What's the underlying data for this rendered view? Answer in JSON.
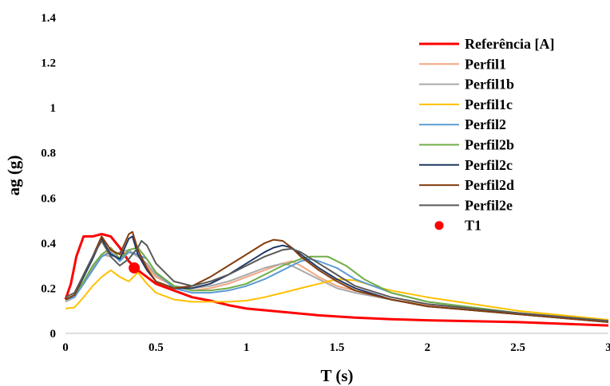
{
  "chart_data": {
    "type": "line",
    "title": "",
    "xlabel": "T (s)",
    "ylabel": "ag (g)",
    "xlim": [
      0,
      3
    ],
    "ylim": [
      0,
      1.4
    ],
    "xticks": [
      "0",
      "0.5",
      "1",
      "1.5",
      "2",
      "2.5",
      "3"
    ],
    "yticks": [
      "0",
      "0.2",
      "0.4",
      "0.6",
      "0.8",
      "1",
      "1.2",
      "1.4"
    ],
    "grid": false,
    "legend_position": "top-right",
    "series": [
      {
        "name": "Referência [A]",
        "color": "#ff0000",
        "width": 3,
        "points": [
          [
            0,
            0.15
          ],
          [
            0.03,
            0.22
          ],
          [
            0.06,
            0.34
          ],
          [
            0.1,
            0.43
          ],
          [
            0.15,
            0.43
          ],
          [
            0.2,
            0.44
          ],
          [
            0.25,
            0.43
          ],
          [
            0.3,
            0.38
          ],
          [
            0.35,
            0.32
          ],
          [
            0.4,
            0.28
          ],
          [
            0.5,
            0.22
          ],
          [
            0.6,
            0.19
          ],
          [
            0.7,
            0.16
          ],
          [
            0.8,
            0.145
          ],
          [
            0.9,
            0.125
          ],
          [
            1.0,
            0.11
          ],
          [
            1.2,
            0.095
          ],
          [
            1.4,
            0.08
          ],
          [
            1.6,
            0.07
          ],
          [
            1.8,
            0.063
          ],
          [
            2.0,
            0.058
          ],
          [
            2.5,
            0.05
          ],
          [
            3.0,
            0.035
          ]
        ]
      },
      {
        "name": "Perfil1",
        "color": "#f4a582",
        "width": 2,
        "points": [
          [
            0,
            0.14
          ],
          [
            0.05,
            0.16
          ],
          [
            0.1,
            0.22
          ],
          [
            0.15,
            0.28
          ],
          [
            0.2,
            0.34
          ],
          [
            0.25,
            0.37
          ],
          [
            0.3,
            0.33
          ],
          [
            0.35,
            0.36
          ],
          [
            0.38,
            0.35
          ],
          [
            0.42,
            0.33
          ],
          [
            0.5,
            0.25
          ],
          [
            0.6,
            0.21
          ],
          [
            0.7,
            0.19
          ],
          [
            0.8,
            0.2
          ],
          [
            0.9,
            0.22
          ],
          [
            1.0,
            0.25
          ],
          [
            1.1,
            0.28
          ],
          [
            1.2,
            0.31
          ],
          [
            1.25,
            0.32
          ],
          [
            1.3,
            0.3
          ],
          [
            1.4,
            0.25
          ],
          [
            1.5,
            0.21
          ],
          [
            1.6,
            0.19
          ],
          [
            1.8,
            0.15
          ],
          [
            2.0,
            0.125
          ],
          [
            2.5,
            0.09
          ],
          [
            3.0,
            0.06
          ]
        ]
      },
      {
        "name": "Perfil1b",
        "color": "#a9a9a9",
        "width": 2,
        "points": [
          [
            0,
            0.14
          ],
          [
            0.05,
            0.16
          ],
          [
            0.1,
            0.22
          ],
          [
            0.15,
            0.29
          ],
          [
            0.2,
            0.35
          ],
          [
            0.25,
            0.34
          ],
          [
            0.3,
            0.36
          ],
          [
            0.35,
            0.37
          ],
          [
            0.4,
            0.34
          ],
          [
            0.45,
            0.31
          ],
          [
            0.5,
            0.26
          ],
          [
            0.6,
            0.21
          ],
          [
            0.7,
            0.2
          ],
          [
            0.8,
            0.21
          ],
          [
            0.9,
            0.23
          ],
          [
            1.0,
            0.26
          ],
          [
            1.1,
            0.29
          ],
          [
            1.2,
            0.31
          ],
          [
            1.25,
            0.3
          ],
          [
            1.3,
            0.28
          ],
          [
            1.4,
            0.24
          ],
          [
            1.5,
            0.2
          ],
          [
            1.6,
            0.18
          ],
          [
            1.8,
            0.15
          ],
          [
            2.0,
            0.12
          ],
          [
            2.5,
            0.09
          ],
          [
            3.0,
            0.055
          ]
        ]
      },
      {
        "name": "Perfil1c",
        "color": "#ffc000",
        "width": 2,
        "points": [
          [
            0,
            0.11
          ],
          [
            0.05,
            0.115
          ],
          [
            0.1,
            0.16
          ],
          [
            0.15,
            0.21
          ],
          [
            0.2,
            0.25
          ],
          [
            0.25,
            0.28
          ],
          [
            0.3,
            0.25
          ],
          [
            0.35,
            0.23
          ],
          [
            0.4,
            0.27
          ],
          [
            0.45,
            0.22
          ],
          [
            0.5,
            0.18
          ],
          [
            0.6,
            0.15
          ],
          [
            0.7,
            0.14
          ],
          [
            0.8,
            0.14
          ],
          [
            0.9,
            0.14
          ],
          [
            1.0,
            0.145
          ],
          [
            1.1,
            0.16
          ],
          [
            1.2,
            0.18
          ],
          [
            1.3,
            0.2
          ],
          [
            1.4,
            0.22
          ],
          [
            1.5,
            0.24
          ],
          [
            1.6,
            0.235
          ],
          [
            1.7,
            0.21
          ],
          [
            1.8,
            0.19
          ],
          [
            2.0,
            0.16
          ],
          [
            2.5,
            0.1
          ],
          [
            3.0,
            0.06
          ]
        ]
      },
      {
        "name": "Perfil2",
        "color": "#5b9bd5",
        "width": 2,
        "points": [
          [
            0,
            0.15
          ],
          [
            0.05,
            0.16
          ],
          [
            0.1,
            0.22
          ],
          [
            0.15,
            0.28
          ],
          [
            0.2,
            0.34
          ],
          [
            0.25,
            0.36
          ],
          [
            0.3,
            0.32
          ],
          [
            0.35,
            0.36
          ],
          [
            0.4,
            0.35
          ],
          [
            0.45,
            0.33
          ],
          [
            0.5,
            0.27
          ],
          [
            0.6,
            0.2
          ],
          [
            0.7,
            0.18
          ],
          [
            0.8,
            0.18
          ],
          [
            0.9,
            0.19
          ],
          [
            1.0,
            0.21
          ],
          [
            1.1,
            0.24
          ],
          [
            1.2,
            0.28
          ],
          [
            1.3,
            0.32
          ],
          [
            1.35,
            0.33
          ],
          [
            1.4,
            0.32
          ],
          [
            1.5,
            0.29
          ],
          [
            1.6,
            0.24
          ],
          [
            1.8,
            0.18
          ],
          [
            2.0,
            0.14
          ],
          [
            2.5,
            0.09
          ],
          [
            3.0,
            0.055
          ]
        ]
      },
      {
        "name": "Perfil2b",
        "color": "#70ad47",
        "width": 2,
        "points": [
          [
            0,
            0.15
          ],
          [
            0.05,
            0.17
          ],
          [
            0.1,
            0.23
          ],
          [
            0.15,
            0.3
          ],
          [
            0.2,
            0.35
          ],
          [
            0.25,
            0.38
          ],
          [
            0.3,
            0.33
          ],
          [
            0.35,
            0.37
          ],
          [
            0.4,
            0.38
          ],
          [
            0.45,
            0.33
          ],
          [
            0.5,
            0.27
          ],
          [
            0.6,
            0.21
          ],
          [
            0.7,
            0.19
          ],
          [
            0.8,
            0.19
          ],
          [
            0.9,
            0.2
          ],
          [
            1.0,
            0.22
          ],
          [
            1.1,
            0.26
          ],
          [
            1.2,
            0.3
          ],
          [
            1.3,
            0.33
          ],
          [
            1.35,
            0.34
          ],
          [
            1.45,
            0.34
          ],
          [
            1.55,
            0.3
          ],
          [
            1.65,
            0.24
          ],
          [
            1.8,
            0.18
          ],
          [
            2.0,
            0.14
          ],
          [
            2.5,
            0.09
          ],
          [
            3.0,
            0.055
          ]
        ]
      },
      {
        "name": "Perfil2c",
        "color": "#203864",
        "width": 2,
        "points": [
          [
            0,
            0.15
          ],
          [
            0.05,
            0.17
          ],
          [
            0.1,
            0.25
          ],
          [
            0.15,
            0.33
          ],
          [
            0.2,
            0.42
          ],
          [
            0.25,
            0.35
          ],
          [
            0.3,
            0.33
          ],
          [
            0.35,
            0.42
          ],
          [
            0.37,
            0.43
          ],
          [
            0.4,
            0.35
          ],
          [
            0.45,
            0.28
          ],
          [
            0.5,
            0.23
          ],
          [
            0.6,
            0.2
          ],
          [
            0.7,
            0.2
          ],
          [
            0.8,
            0.22
          ],
          [
            0.9,
            0.26
          ],
          [
            1.0,
            0.31
          ],
          [
            1.1,
            0.36
          ],
          [
            1.15,
            0.38
          ],
          [
            1.2,
            0.39
          ],
          [
            1.25,
            0.38
          ],
          [
            1.3,
            0.35
          ],
          [
            1.4,
            0.29
          ],
          [
            1.5,
            0.24
          ],
          [
            1.6,
            0.2
          ],
          [
            1.8,
            0.15
          ],
          [
            2.0,
            0.12
          ],
          [
            2.5,
            0.085
          ],
          [
            3.0,
            0.05
          ]
        ]
      },
      {
        "name": "Perfil2d",
        "color": "#843c0c",
        "width": 2,
        "points": [
          [
            0,
            0.15
          ],
          [
            0.05,
            0.17
          ],
          [
            0.1,
            0.26
          ],
          [
            0.15,
            0.34
          ],
          [
            0.2,
            0.43
          ],
          [
            0.25,
            0.37
          ],
          [
            0.3,
            0.35
          ],
          [
            0.35,
            0.44
          ],
          [
            0.37,
            0.45
          ],
          [
            0.4,
            0.37
          ],
          [
            0.45,
            0.29
          ],
          [
            0.5,
            0.23
          ],
          [
            0.6,
            0.2
          ],
          [
            0.7,
            0.21
          ],
          [
            0.8,
            0.25
          ],
          [
            0.9,
            0.3
          ],
          [
            1.0,
            0.35
          ],
          [
            1.1,
            0.4
          ],
          [
            1.15,
            0.415
          ],
          [
            1.2,
            0.41
          ],
          [
            1.25,
            0.38
          ],
          [
            1.3,
            0.34
          ],
          [
            1.4,
            0.28
          ],
          [
            1.5,
            0.23
          ],
          [
            1.6,
            0.19
          ],
          [
            1.8,
            0.15
          ],
          [
            2.0,
            0.12
          ],
          [
            2.5,
            0.085
          ],
          [
            3.0,
            0.05
          ]
        ]
      },
      {
        "name": "Perfil2e",
        "color": "#595959",
        "width": 2,
        "points": [
          [
            0,
            0.16
          ],
          [
            0.05,
            0.18
          ],
          [
            0.1,
            0.26
          ],
          [
            0.15,
            0.34
          ],
          [
            0.2,
            0.41
          ],
          [
            0.25,
            0.34
          ],
          [
            0.3,
            0.3
          ],
          [
            0.35,
            0.33
          ],
          [
            0.4,
            0.38
          ],
          [
            0.42,
            0.41
          ],
          [
            0.45,
            0.39
          ],
          [
            0.5,
            0.31
          ],
          [
            0.6,
            0.23
          ],
          [
            0.7,
            0.21
          ],
          [
            0.8,
            0.23
          ],
          [
            0.9,
            0.26
          ],
          [
            1.0,
            0.3
          ],
          [
            1.1,
            0.34
          ],
          [
            1.2,
            0.37
          ],
          [
            1.25,
            0.375
          ],
          [
            1.3,
            0.36
          ],
          [
            1.4,
            0.31
          ],
          [
            1.5,
            0.26
          ],
          [
            1.6,
            0.21
          ],
          [
            1.8,
            0.16
          ],
          [
            2.0,
            0.13
          ],
          [
            2.5,
            0.09
          ],
          [
            3.0,
            0.055
          ]
        ]
      }
    ],
    "markers": [
      {
        "name": "T1",
        "color": "#ff0000",
        "x": 0.38,
        "y": 0.29
      }
    ]
  }
}
